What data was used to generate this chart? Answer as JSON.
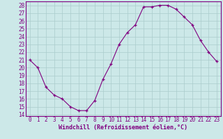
{
  "x": [
    0,
    1,
    2,
    3,
    4,
    5,
    6,
    7,
    8,
    9,
    10,
    11,
    12,
    13,
    14,
    15,
    16,
    17,
    18,
    19,
    20,
    21,
    22,
    23
  ],
  "y": [
    21,
    20,
    17.5,
    16.5,
    16,
    15,
    14.5,
    14.5,
    15.8,
    18.5,
    20.5,
    23,
    24.5,
    25.5,
    27.8,
    27.8,
    28,
    28,
    27.5,
    26.5,
    25.5,
    23.5,
    22,
    20.8
  ],
  "line_color": "#800080",
  "marker": "+",
  "marker_color": "#800080",
  "bg_color": "#cce8e8",
  "grid_color": "#aacccc",
  "axis_color": "#800080",
  "spine_color": "#800080",
  "xlabel": "Windchill (Refroidissement éolien,°C)",
  "xlim": [
    -0.5,
    23.5
  ],
  "ylim": [
    13.8,
    28.5
  ],
  "yticks": [
    14,
    15,
    16,
    17,
    18,
    19,
    20,
    21,
    22,
    23,
    24,
    25,
    26,
    27,
    28
  ],
  "xticks": [
    0,
    1,
    2,
    3,
    4,
    5,
    6,
    7,
    8,
    9,
    10,
    11,
    12,
    13,
    14,
    15,
    16,
    17,
    18,
    19,
    20,
    21,
    22,
    23
  ],
  "tick_fontsize": 5.5,
  "label_fontsize": 6.0
}
